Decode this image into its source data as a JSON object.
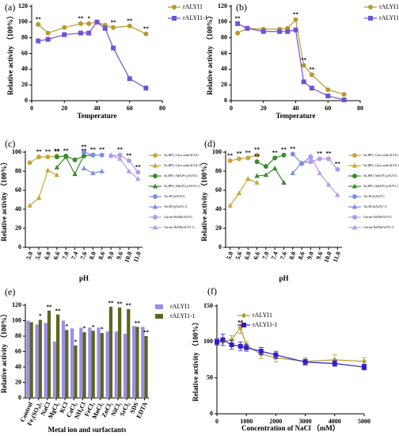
{
  "chart_data": [
    {
      "type": "line",
      "panel_label": "(a)",
      "x_label": "Temperature",
      "y_label": "Relative activity （100%）",
      "x": [
        4,
        10,
        20,
        30,
        35,
        40,
        45,
        50,
        60,
        70
      ],
      "xlim": [
        0,
        80
      ],
      "xticks": [
        0,
        20,
        40,
        60,
        80
      ],
      "ylim": [
        0,
        120
      ],
      "yticks": [
        0,
        20,
        40,
        60,
        80,
        100,
        120
      ],
      "legend": "outside-right",
      "series": [
        {
          "name": "rALYI1",
          "color": "#b89a2c",
          "marker": "circle",
          "values": [
            97,
            86,
            93,
            98,
            98,
            100,
            96,
            93,
            95,
            85
          ],
          "annotations": [
            "**",
            null,
            null,
            "**",
            "*",
            null,
            null,
            "**",
            "**",
            "**"
          ]
        },
        {
          "name": "rALYI1-1",
          "color": "#7152d6",
          "marker": "square",
          "values": [
            76,
            78,
            84,
            86,
            86,
            100,
            92,
            67,
            28,
            16
          ],
          "annotations": [
            null,
            null,
            null,
            null,
            null,
            null,
            null,
            null,
            null,
            null
          ]
        }
      ]
    },
    {
      "type": "line",
      "panel_label": "(b)",
      "x_label": "Temperature",
      "y_label": "Relative activity （100%）",
      "x": [
        4,
        10,
        20,
        30,
        35,
        40,
        45,
        50,
        60,
        70
      ],
      "xlim": [
        0,
        80
      ],
      "xticks": [
        0,
        20,
        40,
        60,
        80
      ],
      "ylim": [
        0,
        120
      ],
      "yticks": [
        0,
        20,
        40,
        60,
        80,
        100,
        120
      ],
      "legend": "outside-right",
      "series": [
        {
          "name": "rALYI1",
          "color": "#b89a2c",
          "marker": "circle",
          "values": [
            86,
            92,
            91,
            91,
            92,
            103,
            45,
            33,
            14,
            8
          ],
          "annotations": [
            null,
            null,
            null,
            null,
            null,
            "**",
            "**",
            "**",
            null,
            null
          ]
        },
        {
          "name": "rALYI1-1",
          "color": "#7152d6",
          "marker": "square",
          "values": [
            98,
            92,
            88,
            88,
            88,
            90,
            24,
            16,
            6,
            1
          ],
          "annotations": [
            "**",
            null,
            null,
            null,
            null,
            null,
            null,
            null,
            null,
            null
          ]
        }
      ]
    },
    {
      "type": "line",
      "panel_label": "(c)",
      "x_label": "pH",
      "y_label": "Relative activity （100%）",
      "categories": [
        "5.0",
        "5.6",
        "6.0",
        "6.6",
        "7.0",
        "7.4",
        "7.6",
        "8.0",
        "8.6",
        "9.0",
        "9.6",
        "10.0",
        "11.0"
      ],
      "ylim": [
        0,
        100
      ],
      "yticks": [
        0,
        20,
        40,
        60,
        80,
        100
      ],
      "legend": "outside-right",
      "series": [
        {
          "name": "Na₂HPO₄-Citric acid(rALYI1)",
          "color": "#c8a63a",
          "marker": "circle",
          "values": [
            89,
            95,
            95,
            96,
            null,
            null,
            null,
            null,
            null,
            null,
            null,
            null,
            null
          ],
          "annotations": [
            null,
            "**",
            "**",
            "**",
            null,
            null,
            null,
            null,
            null,
            null,
            null,
            null,
            null
          ]
        },
        {
          "name": "Na₂HPO₄-Citric acid(rALYI1-1)",
          "color": "#c8a63a",
          "marker": "triangle",
          "values": [
            44,
            52,
            81,
            76,
            null,
            null,
            null,
            null,
            null,
            null,
            null,
            null,
            null
          ]
        },
        {
          "name": "Na₂HPO₄-NaH₂PO₄(rALYI1)",
          "color": "#3d8a2e",
          "marker": "circle",
          "values": [
            null,
            null,
            null,
            95,
            96,
            92,
            96,
            97,
            null,
            null,
            null,
            null,
            null
          ],
          "annotations": [
            null,
            null,
            null,
            "**",
            "**",
            null,
            "**",
            "**",
            null,
            null,
            null,
            null,
            null
          ]
        },
        {
          "name": "Na₂HPO₄-NaH₂PO₄(rALYI1-1)",
          "color": "#3d8a2e",
          "marker": "triangle",
          "values": [
            null,
            null,
            null,
            84,
            95,
            77,
            97,
            null,
            null,
            null,
            null,
            null,
            null
          ]
        },
        {
          "name": "Tris-HCl(rALYI1)",
          "color": "#7b8ee8",
          "marker": "circle",
          "values": [
            null,
            null,
            null,
            null,
            null,
            null,
            100,
            97,
            97,
            null,
            null,
            null,
            null
          ],
          "annotations": [
            null,
            null,
            null,
            null,
            null,
            null,
            "**",
            null,
            "**",
            null,
            null,
            null,
            null
          ]
        },
        {
          "name": "Tris-HCl(rALYI1-1)",
          "color": "#7b8ee8",
          "marker": "triangle",
          "values": [
            null,
            null,
            null,
            null,
            null,
            null,
            83,
            78,
            80,
            null,
            null,
            null,
            null
          ]
        },
        {
          "name": "Glycine-NaOH(rALYI1)",
          "color": "#b69be6",
          "marker": "circle",
          "values": [
            null,
            null,
            null,
            null,
            null,
            null,
            null,
            null,
            null,
            96,
            97,
            91,
            79
          ],
          "annotations": [
            null,
            null,
            null,
            null,
            null,
            null,
            null,
            null,
            null,
            null,
            "**",
            "**",
            "**"
          ]
        },
        {
          "name": "Glycine-NaOH(rALYI1-1)",
          "color": "#b69be6",
          "marker": "triangle",
          "values": [
            null,
            null,
            null,
            null,
            null,
            null,
            null,
            null,
            null,
            97,
            93,
            80,
            72
          ]
        }
      ]
    },
    {
      "type": "line",
      "panel_label": "(d)",
      "x_label": "pH",
      "y_label": "Relative activity （100%）",
      "categories": [
        "5.0",
        "5.6",
        "6.0",
        "6.6",
        "7.0",
        "7.4",
        "7.6",
        "8.0",
        "8.6",
        "9.0",
        "9.6",
        "10.0",
        "11.0"
      ],
      "ylim": [
        0,
        100
      ],
      "yticks": [
        0,
        20,
        40,
        60,
        80,
        100
      ],
      "legend": "outside-right",
      "series": [
        {
          "name": "Na₂HPO₄-Citric acid(rALYI1)",
          "color": "#c8a63a",
          "marker": "circle",
          "values": [
            91,
            93,
            94,
            97,
            null,
            null,
            null,
            null,
            null,
            null,
            null,
            null,
            null
          ],
          "annotations": [
            "**",
            "**",
            "**",
            "**",
            null,
            null,
            null,
            null,
            null,
            null,
            null,
            null,
            null
          ]
        },
        {
          "name": "Na₂HPO₄-Citric acid(rALYI1-1)",
          "color": "#c8a63a",
          "marker": "triangle",
          "values": [
            44,
            57,
            72,
            68,
            null,
            null,
            null,
            null,
            null,
            null,
            null,
            null,
            null
          ]
        },
        {
          "name": "Na₂HPO₄-NaH₂PO₄(rALYI1)",
          "color": "#3d8a2e",
          "marker": "circle",
          "values": [
            null,
            null,
            null,
            90,
            85,
            94,
            97,
            null,
            null,
            null,
            null,
            null,
            null
          ],
          "annotations": [
            null,
            null,
            null,
            "**",
            null,
            "**",
            "**",
            null,
            null,
            null,
            null,
            null,
            null
          ]
        },
        {
          "name": "Na₂HPO₄-NaH₂PO₄(rALYI1-1)",
          "color": "#3d8a2e",
          "marker": "triangle",
          "values": [
            null,
            null,
            null,
            75,
            76,
            83,
            68,
            null,
            null,
            null,
            null,
            null,
            null
          ]
        },
        {
          "name": "Tris-HCl(rALYI1)",
          "color": "#7b8ee8",
          "marker": "circle",
          "values": [
            null,
            null,
            null,
            null,
            null,
            null,
            null,
            98,
            88,
            95,
            null,
            null,
            null
          ],
          "annotations": [
            null,
            null,
            null,
            null,
            null,
            null,
            null,
            "**",
            null,
            null,
            null,
            null,
            null
          ]
        },
        {
          "name": "Tris-HCl(rALYI1-1)",
          "color": "#7b8ee8",
          "marker": "triangle",
          "values": [
            null,
            null,
            null,
            null,
            null,
            null,
            null,
            78,
            89,
            90,
            null,
            null,
            null
          ]
        },
        {
          "name": "Glycine-NaOH(rALYI1)",
          "color": "#b69be6",
          "marker": "circle",
          "values": [
            null,
            null,
            null,
            null,
            null,
            null,
            null,
            null,
            null,
            90,
            93,
            93,
            82
          ],
          "annotations": [
            null,
            null,
            null,
            null,
            null,
            null,
            null,
            null,
            null,
            null,
            "**",
            "**",
            "**"
          ]
        },
        {
          "name": "Glycine-NaOH(rALYI1-1)",
          "color": "#b69be6",
          "marker": "triangle",
          "values": [
            null,
            null,
            null,
            null,
            null,
            null,
            null,
            null,
            null,
            96,
            78,
            66,
            55
          ]
        }
      ]
    },
    {
      "type": "bar",
      "panel_label": "(e)",
      "x_label": "Metal ion and surfactants",
      "y_label": "Relative activity （100%）",
      "categories": [
        "Control",
        "Fe₂(SO₄)₃",
        "NaCl",
        "MgCl₂",
        "KCl",
        "CaCl₂",
        "NH₄Cl",
        "FeCl₃",
        "MnCl₂",
        "ZnCl₂",
        "NiCl₂",
        "SrCl₂",
        "SDS",
        "EDTA"
      ],
      "ylim": [
        0,
        120
      ],
      "yticks": [
        0,
        20,
        40,
        60,
        80,
        100,
        120
      ],
      "legend": "outside-right",
      "series": [
        {
          "name": "rALYI1",
          "color": "#9a8fe6",
          "values": [
            100,
            95,
            97,
            73,
            100,
            90,
            91,
            91,
            91,
            86,
            86,
            83,
            93,
            92
          ],
          "annotations": [
            null,
            null,
            null,
            null,
            null,
            null,
            null,
            null,
            null,
            null,
            null,
            null,
            null,
            null
          ]
        },
        {
          "name": "rALYI1-1",
          "color": "#5f6420",
          "values": [
            98,
            101,
            113,
            108,
            88,
            68,
            85,
            87,
            84,
            118,
            117,
            115,
            92,
            80
          ],
          "annotations": [
            null,
            "*",
            "**",
            "**",
            "*",
            "*",
            "*",
            "*",
            "*",
            "**",
            "**",
            "**",
            "**",
            "**"
          ]
        }
      ]
    },
    {
      "type": "line",
      "panel_label": "(f)",
      "x_label": "Concentration of NaCl （mM）",
      "y_label": "Relative activity （100%）",
      "x": [
        0,
        200,
        500,
        800,
        1000,
        1500,
        2000,
        3000,
        4000,
        5000
      ],
      "xlim": [
        0,
        5000
      ],
      "xticks": [
        0,
        1000,
        2000,
        3000,
        4000,
        5000
      ],
      "ylim": [
        0,
        150
      ],
      "yticks": [
        0,
        50,
        100,
        150
      ],
      "legend": "inside-top-left",
      "series": [
        {
          "name": "rALYI1",
          "color": "#b89a2c",
          "marker": "diamond",
          "values": [
            100,
            100,
            103,
            120,
            95,
            83,
            78,
            73,
            75,
            73
          ],
          "errors": [
            4,
            5,
            6,
            8,
            5,
            6,
            6,
            5,
            7,
            5
          ],
          "annotations": [
            null,
            null,
            null,
            "**",
            null,
            null,
            null,
            null,
            null,
            null
          ]
        },
        {
          "name": "rALYI1-1",
          "color": "#2f1fc4",
          "marker": "square",
          "values": [
            100,
            103,
            96,
            94,
            92,
            87,
            82,
            72,
            70,
            65
          ],
          "errors": [
            4,
            8,
            6,
            6,
            5,
            5,
            5,
            4,
            4,
            4
          ]
        }
      ]
    }
  ]
}
